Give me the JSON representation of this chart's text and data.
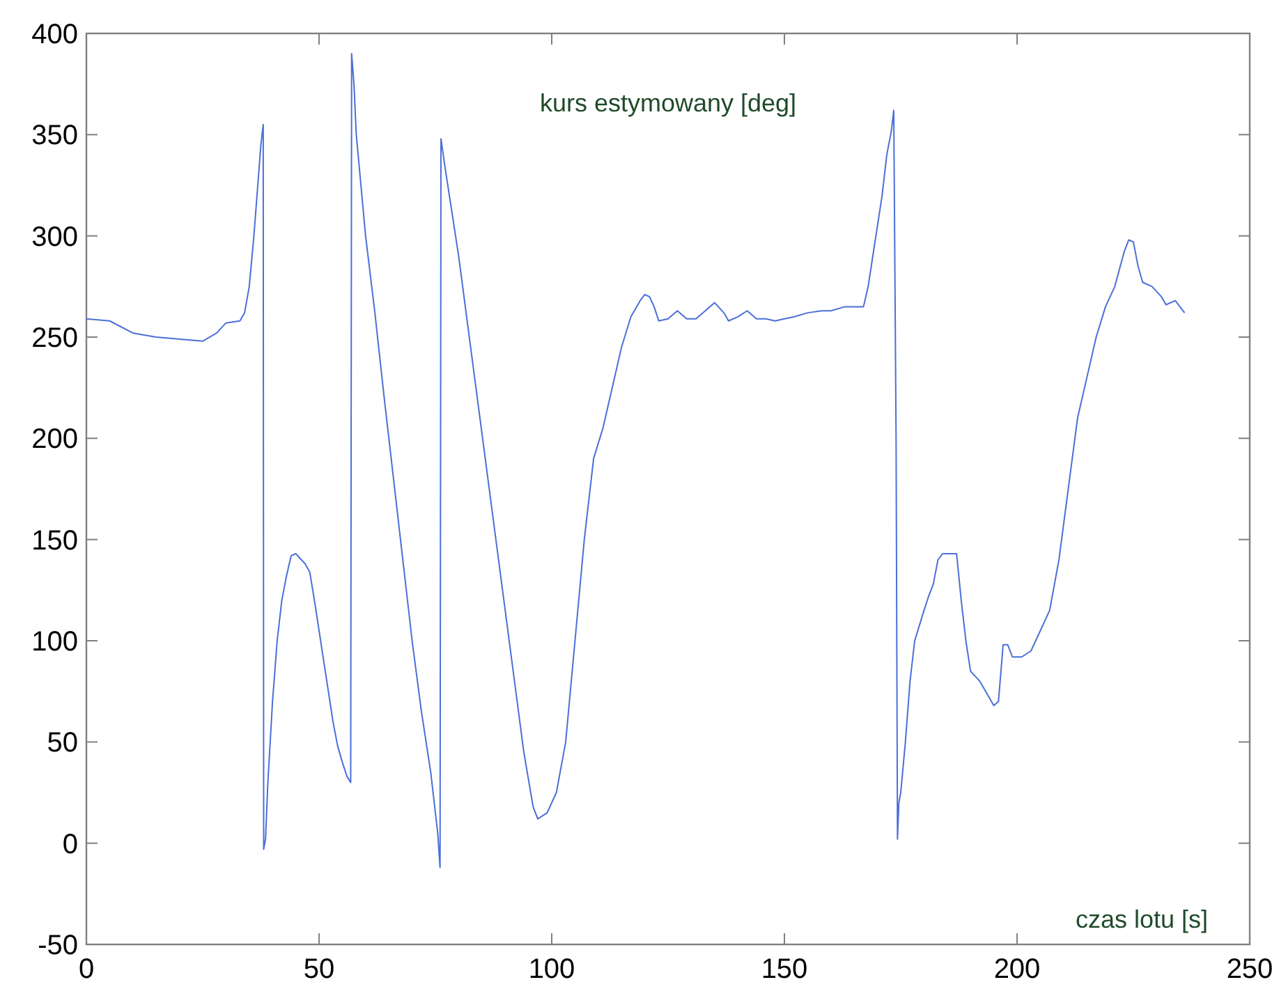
{
  "chart_data": {
    "type": "line",
    "title": "kurs estymowany [deg]",
    "xlabel": "czas lotu [s]",
    "xlim": [
      0,
      250
    ],
    "xticks": [
      0,
      50,
      100,
      150,
      200,
      250
    ],
    "ylim": [
      -50,
      400
    ],
    "yticks": [
      -50,
      0,
      50,
      100,
      150,
      200,
      250,
      300,
      350,
      400
    ],
    "grid": false,
    "marker": "none",
    "line_style": "solid",
    "series": [
      {
        "color": "#4b6fd8",
        "x": [
          0,
          5,
          10,
          15,
          20,
          25,
          28,
          30,
          33,
          34,
          35,
          36,
          37,
          37.5,
          38,
          38.1,
          38.5,
          39,
          40,
          41,
          42,
          43,
          44,
          45,
          47,
          48,
          49,
          50,
          51,
          52,
          53,
          54,
          55,
          56,
          56.8,
          57,
          57.5,
          58,
          59,
          60,
          62,
          64,
          66,
          68,
          70,
          72,
          74,
          75.5,
          76,
          76.2,
          77,
          78,
          80,
          82,
          84,
          86,
          88,
          90,
          92,
          94,
          96,
          97,
          99,
          101,
          103,
          105,
          107,
          109,
          111,
          113,
          115,
          117,
          119,
          120,
          121,
          122,
          123,
          125,
          127,
          129,
          131,
          133,
          135,
          137,
          138,
          140,
          142,
          144,
          146,
          148,
          150,
          152,
          155,
          158,
          160,
          163,
          165,
          167,
          168,
          169,
          170,
          171,
          172,
          173,
          173.5,
          174,
          174.3,
          174.6,
          175,
          176,
          177,
          178,
          180,
          181,
          182,
          183,
          184,
          185,
          187,
          188,
          189,
          190,
          192,
          194,
          195,
          196,
          197,
          198,
          199,
          201,
          203,
          205,
          207,
          209,
          211,
          213,
          215,
          217,
          219,
          221,
          223,
          224,
          225,
          226,
          227,
          229,
          231,
          232,
          234,
          235,
          236
        ],
        "values": [
          259,
          258,
          252,
          250,
          249,
          248,
          252,
          257,
          258,
          262,
          275,
          300,
          330,
          345,
          355,
          -3,
          2,
          30,
          70,
          100,
          120,
          132,
          142,
          143,
          138,
          134,
          120,
          105,
          90,
          75,
          60,
          48,
          40,
          33,
          30,
          390,
          375,
          350,
          325,
          300,
          262,
          220,
          180,
          140,
          100,
          65,
          35,
          5,
          -12,
          348,
          335,
          320,
          290,
          255,
          220,
          185,
          150,
          115,
          80,
          45,
          18,
          12,
          15,
          25,
          50,
          100,
          150,
          190,
          205,
          225,
          245,
          260,
          268,
          271,
          270,
          265,
          258,
          259,
          263,
          259,
          259,
          263,
          267,
          262,
          258,
          260,
          263,
          259,
          259,
          258,
          259,
          260,
          262,
          263,
          263,
          265,
          265,
          265,
          275,
          290,
          305,
          320,
          340,
          352,
          362,
          200,
          2,
          20,
          25,
          50,
          80,
          100,
          115,
          122,
          128,
          140,
          143,
          143,
          143,
          120,
          100,
          85,
          80,
          72,
          68,
          70,
          98,
          98,
          92,
          92,
          95,
          105,
          115,
          140,
          175,
          210,
          230,
          250,
          265,
          275,
          292,
          298,
          297,
          285,
          277,
          275,
          270,
          266,
          268,
          265,
          262
        ]
      }
    ]
  }
}
